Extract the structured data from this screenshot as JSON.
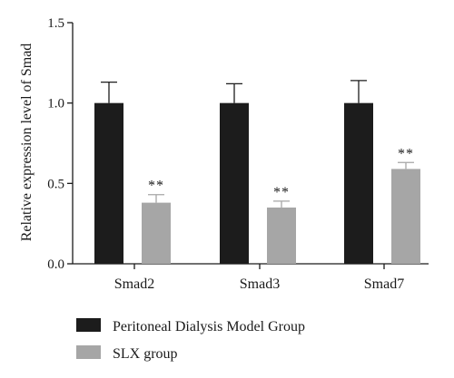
{
  "chart_data": {
    "type": "bar",
    "ylabel": "Relative expression level of Smad",
    "xlabel": "",
    "ylim": [
      0,
      1.5
    ],
    "yticks": [
      "0.0",
      "0.5",
      "1.0",
      "1.5"
    ],
    "ytick_values": [
      0,
      0.5,
      1.0,
      1.5
    ],
    "categories": [
      "Smad2",
      "Smad3",
      "Smad7"
    ],
    "series": [
      {
        "name": "Peritoneal Dialysis Model Group",
        "color": "#1c1c1c",
        "values": [
          1.0,
          1.0,
          1.0
        ],
        "errors": [
          0.13,
          0.12,
          0.14
        ],
        "annotations": [
          "",
          "",
          ""
        ]
      },
      {
        "name": "SLX group",
        "color": "#a6a6a6",
        "values": [
          0.38,
          0.35,
          0.59
        ],
        "errors": [
          0.05,
          0.04,
          0.04
        ],
        "annotations": [
          "**",
          "**",
          "**"
        ]
      }
    ],
    "grid": false,
    "legend_position": "bottom-left"
  }
}
